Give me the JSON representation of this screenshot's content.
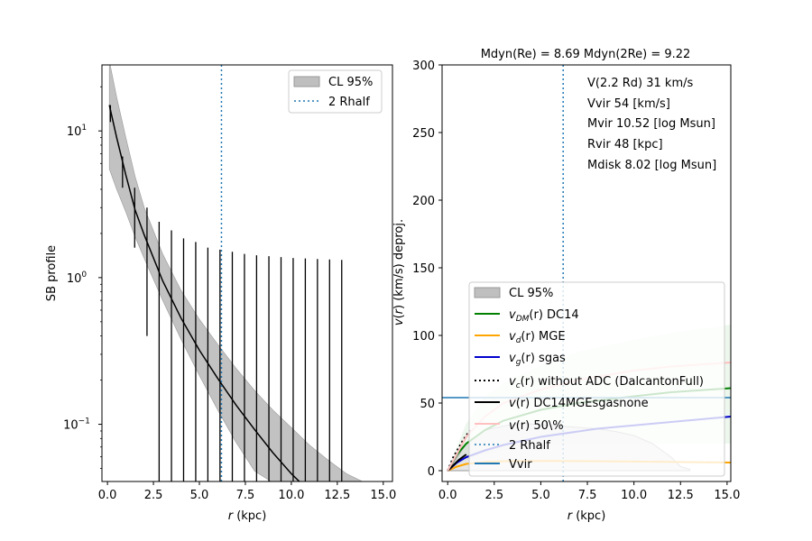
{
  "chart_data": [
    {
      "type": "line",
      "panel": "left",
      "xlabel": "r (kpc)",
      "xlabel_parts": {
        "var": "r",
        "unit": " (kpc)"
      },
      "ylabel": "SB profile",
      "xlim": [
        -0.3,
        15.5
      ],
      "ylim_log10": [
        -1.39,
        1.45
      ],
      "y_scale": "log",
      "x_ticks": [
        "0.0",
        "2.5",
        "5.0",
        "7.5",
        "10.0",
        "12.5",
        "15.0"
      ],
      "x_tick_values": [
        0,
        2.5,
        5,
        7.5,
        10,
        12.5,
        15
      ],
      "y_ticks": [
        {
          "base": "10",
          "exp": "1",
          "value": 10
        },
        {
          "base": "10",
          "exp": "0",
          "value": 1
        },
        {
          "base": "10",
          "exp": "−1",
          "value": 0.1
        }
      ],
      "legend_position": "top-right",
      "legend": [
        {
          "label": "CL 95%",
          "kind": "band",
          "color": "#bfbfbf"
        },
        {
          "label": "2 Rhalf",
          "kind": "dotted",
          "color": "#1f77b4"
        }
      ],
      "vline_2rhalf": 6.2,
      "model_curve": {
        "x": [
          0.1,
          0.5,
          1.0,
          1.5,
          2.0,
          3.0,
          4.0,
          5.0,
          6.0,
          7.0,
          8.0,
          9.0,
          10.0,
          10.5
        ],
        "y": [
          15,
          9.0,
          5.0,
          2.9,
          1.95,
          0.95,
          0.53,
          0.32,
          0.205,
          0.135,
          0.092,
          0.064,
          0.046,
          0.04
        ]
      },
      "band": {
        "x": [
          0.1,
          0.5,
          1.0,
          1.5,
          2.0,
          3.0,
          4.0,
          5.0,
          6.0,
          7.0,
          8.0,
          9.0,
          10.0,
          11.0,
          12.0,
          13.0,
          14.0
        ],
        "upper": [
          30,
          17,
          9.0,
          4.9,
          3.0,
          1.45,
          0.82,
          0.52,
          0.35,
          0.24,
          0.17,
          0.125,
          0.095,
          0.072,
          0.057,
          0.046,
          0.04
        ],
        "lower": [
          5.5,
          4.0,
          2.8,
          1.9,
          1.35,
          0.7,
          0.38,
          0.215,
          0.125,
          0.075,
          0.048,
          0.04,
          0.04,
          0.04,
          0.04,
          0.04,
          0.04
        ]
      },
      "data_points": {
        "x": [
          0.16,
          0.82,
          1.48,
          2.15,
          2.81,
          3.48,
          4.14,
          4.8,
          5.46,
          6.12,
          6.79,
          7.45,
          8.11,
          8.78,
          9.44,
          10.1,
          10.76,
          11.42,
          12.08,
          12.74
        ],
        "y": [
          13.0,
          5.2,
          3.0,
          1.9,
          1.2,
          0.9,
          0.7,
          0.55,
          0.45,
          0.3,
          0.25,
          0.2,
          0.17,
          0.15,
          0.13,
          0.11,
          0.1,
          0.09,
          0.085,
          0.08
        ],
        "err_hi": [
          15.0,
          6.7,
          4.1,
          3.0,
          2.4,
          2.1,
          1.85,
          1.75,
          1.6,
          1.55,
          1.5,
          1.45,
          1.42,
          1.4,
          1.38,
          1.36,
          1.35,
          1.34,
          1.33,
          1.32
        ],
        "err_lo": [
          11.5,
          4.1,
          1.6,
          0.4,
          0.04,
          0.04,
          0.04,
          0.04,
          0.04,
          0.04,
          0.04,
          0.04,
          0.04,
          0.04,
          0.04,
          0.04,
          0.04,
          0.04,
          0.04,
          0.04
        ]
      }
    },
    {
      "type": "line",
      "panel": "right",
      "title": "Mdyn(Re) = 8.69  Mdyn(2Re) = 9.22",
      "xlabel": "r (kpc)",
      "xlabel_parts": {
        "var": "r",
        "unit": " (kpc)"
      },
      "ylabel": "v(r) (km/s) deproj.",
      "ylabel_parts": {
        "var": "v",
        "mid": "(",
        "var2": "r",
        "unit": ") (km/s) deproj."
      },
      "xlim": [
        -0.3,
        15.2
      ],
      "ylim": [
        -8,
        300
      ],
      "x_ticks": [
        "0.0",
        "2.5",
        "5.0",
        "7.5",
        "10.0",
        "12.5",
        "15.0"
      ],
      "x_tick_values": [
        0,
        2.5,
        5,
        7.5,
        10,
        12.5,
        15
      ],
      "y_ticks": [
        "0",
        "50",
        "100",
        "150",
        "200",
        "250",
        "300"
      ],
      "y_tick_values": [
        0,
        50,
        100,
        150,
        200,
        250,
        300
      ],
      "annotations": [
        "V(2.2 Rd) 31 km/s",
        "Vvir 54 [km/s]",
        "Mvir 10.52 [log Msun]",
        "Rvir 48 [kpc]",
        "Mdisk 8.02 [log Msun]"
      ],
      "legend_position": "lower-right",
      "legend": [
        {
          "label": "CL 95%",
          "kind": "band",
          "color": "#bfbfbf"
        },
        {
          "label": "v_DM(r) DC14",
          "pre": "v",
          "sub": "DM",
          "post": "(r) DC14",
          "kind": "line",
          "color": "#008000"
        },
        {
          "label": "v_d(r) MGE",
          "pre": "v",
          "sub": "d",
          "post": "(r) MGE",
          "kind": "line",
          "color": "#ffa500"
        },
        {
          "label": "v_g(r) sgas",
          "pre": "v",
          "sub": "g",
          "post": "(r) sgas",
          "kind": "line",
          "color": "#0000cd"
        },
        {
          "label": "v_c(r) without ADC (DalcantonFull)",
          "pre": "v",
          "sub": "c",
          "post": "(r) without ADC (DalcantonFull)",
          "kind": "dotted",
          "color": "#000000"
        },
        {
          "label": "v(r) DC14MGEsgasnone",
          "pre": "v",
          "sub": "",
          "post": "(r) DC14MGEsgasnone",
          "kind": "line",
          "color": "#000000"
        },
        {
          "label": "v(r) 50\\%",
          "pre": "v",
          "sub": "",
          "post": "(r) 50\\%",
          "kind": "line",
          "color": "#ffc0c0"
        },
        {
          "label": "2 Rhalf",
          "kind": "dotted",
          "color": "#1f77b4"
        },
        {
          "label": "Vvir",
          "kind": "line",
          "color": "#1f77b4"
        }
      ],
      "vline_2rhalf": 6.2,
      "vvir": 54,
      "series": [
        {
          "name": "v_DM(r) DC14",
          "color": "#008000",
          "x": [
            0,
            0.5,
            1,
            2,
            3,
            5,
            7,
            10,
            12,
            15.2
          ],
          "y": [
            0,
            12,
            20,
            30,
            37,
            45,
            50,
            55,
            58,
            61
          ]
        },
        {
          "name": "v_d(r) MGE",
          "color": "#ffa500",
          "x": [
            0,
            0.5,
            1,
            2,
            3,
            5,
            8,
            12,
            15.2
          ],
          "y": [
            0,
            3,
            5,
            6.5,
            7,
            7.2,
            7.0,
            6.5,
            6.0
          ]
        },
        {
          "name": "v_g(r) sgas",
          "color": "#0000cd",
          "x": [
            0,
            0.5,
            1,
            2,
            3,
            5,
            8,
            12,
            15.2
          ],
          "y": [
            0,
            6,
            10,
            15,
            19,
            25,
            31,
            36,
            40
          ]
        },
        {
          "name": "v_c(r) without ADC (DalcantonFull)",
          "color": "#000000",
          "dotted": true,
          "x": [
            0,
            0.3,
            0.8,
            1.2
          ],
          "y": [
            0,
            10,
            22,
            30
          ]
        },
        {
          "name": "v(r) DC14MGEsgasnone",
          "color": "#000000",
          "x": [
            0,
            0.3,
            0.6,
            1.0
          ],
          "y": [
            0,
            4,
            8,
            12
          ]
        },
        {
          "name": "v(r) 50\\%",
          "color": "#ffc0c0",
          "x": [
            0,
            1,
            2,
            3,
            5,
            7,
            10,
            12,
            15.2
          ],
          "y": [
            0,
            25,
            40,
            50,
            60,
            67,
            74,
            77,
            80
          ]
        }
      ],
      "green_band": {
        "x": [
          0,
          1,
          2,
          3,
          5,
          7,
          10,
          12,
          15.2
        ],
        "upper": [
          0,
          35,
          55,
          65,
          78,
          88,
          97,
          102,
          108
        ],
        "lower": [
          0,
          8,
          12,
          15,
          18,
          20,
          20,
          20,
          20
        ]
      },
      "grey_band": {
        "x": [
          0,
          0.5,
          1,
          2,
          3,
          4,
          5,
          6,
          7,
          8,
          9,
          10,
          11,
          12,
          12.5,
          13
        ],
        "upper": [
          0,
          10,
          20,
          30,
          33,
          35,
          34,
          33,
          32,
          31,
          29,
          26,
          20,
          10,
          3,
          1
        ],
        "lower": [
          0,
          0,
          0,
          0,
          0,
          0,
          0,
          0,
          0,
          0,
          0,
          0,
          0,
          0,
          0,
          0
        ]
      }
    }
  ]
}
